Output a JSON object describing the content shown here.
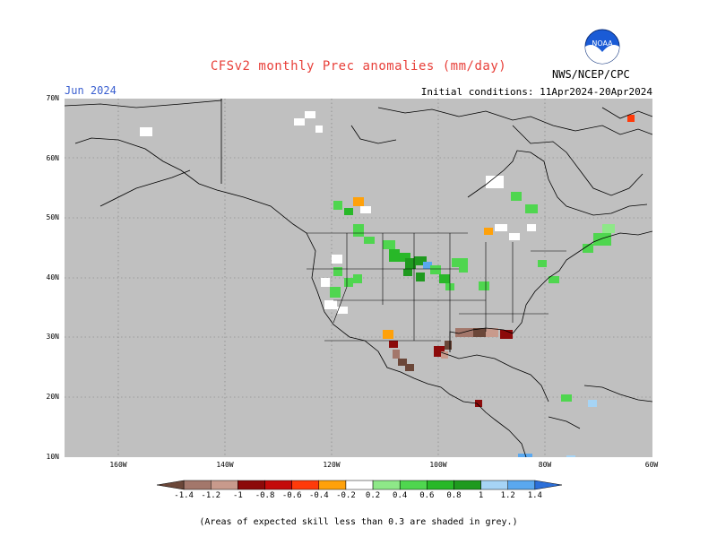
{
  "title": "CFSv2 monthly Prec anomalies (mm/day)",
  "valid_month": "Jun 2024",
  "initial_conditions": "Initial conditions: 11Apr2024-20Apr2024",
  "agency": "NWS/NCEP/CPC",
  "logo_text": "NOAA",
  "lat_labels": [
    "70N",
    "60N",
    "50N",
    "40N",
    "30N",
    "20N",
    "10N"
  ],
  "lon_labels": [
    "160W",
    "140W",
    "120W",
    "100W",
    "80W",
    "60W"
  ],
  "colorbar": {
    "labels": [
      "-1.4",
      "-1.2",
      "-1",
      "-0.8",
      "-0.6",
      "-0.4",
      "-0.2",
      "0.2",
      "0.4",
      "0.6",
      "0.8",
      "1",
      "1.2",
      "1.4"
    ],
    "colors": [
      "#6b4739",
      "#a3776b",
      "#c89a8c",
      "#8c0a0a",
      "#c40b0b",
      "#ff3a0a",
      "#ffa10a",
      "#ffffff",
      "#8ee888",
      "#4fd64f",
      "#28b828",
      "#1f9a1f",
      "#a6d4f5",
      "#5aa8ef",
      "#2c6fd9"
    ]
  },
  "colors": {
    "background_grey": "#c0c0c0",
    "title_red": "#e8403a",
    "month_blue": "#3a5fd0"
  },
  "footnote": "(Areas of expected skill less than 0.3 are shaded in grey.)"
}
